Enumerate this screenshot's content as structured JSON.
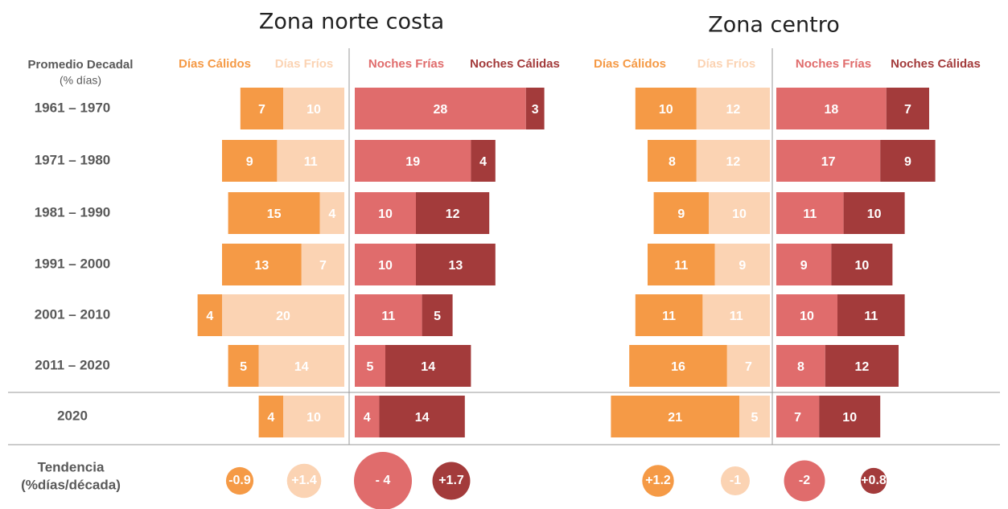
{
  "row_header": [
    "Promedio Decadal",
    "(% días)"
  ],
  "rows": [
    "1961 – 1970",
    "1971 – 1980",
    "1981 – 1990",
    "1991 – 2000",
    "2001 – 2010",
    "2011 – 2020",
    "2020"
  ],
  "trend_header": [
    "Tendencia",
    "(%días/década)"
  ],
  "chart_data": [
    {
      "type": "diverging_bar",
      "title": "Zona norte costa",
      "series": [
        {
          "name": "Días Cálidos",
          "color": "#f59a46",
          "values": [
            7,
            9,
            15,
            13,
            4,
            5,
            4
          ],
          "trend": -0.9
        },
        {
          "name": "Días Fríos",
          "color": "#fbd3b3",
          "values": [
            10,
            11,
            4,
            7,
            20,
            14,
            10
          ],
          "trend": {
            "value": 1.4,
            "label": "+1.4"
          }
        },
        {
          "name": "Noches Frías",
          "color": "#e06c6c",
          "values": [
            28,
            19,
            10,
            10,
            11,
            5,
            4
          ],
          "trend": {
            "value": -4,
            "label": "- 4"
          }
        },
        {
          "name": "Noches Cálidas",
          "color": "#a33b3b",
          "values": [
            3,
            4,
            12,
            13,
            5,
            14,
            14
          ],
          "trend": {
            "value": 1.7,
            "label": "+1.7"
          }
        }
      ]
    },
    {
      "type": "diverging_bar",
      "title": "Zona centro",
      "series": [
        {
          "name": "Días Cálidos",
          "color": "#f59a46",
          "values": [
            10,
            8,
            9,
            11,
            11,
            16,
            21
          ],
          "trend": {
            "value": 1.2,
            "label": "+1.2"
          }
        },
        {
          "name": "Días Fríos",
          "color": "#fbd3b3",
          "values": [
            12,
            12,
            10,
            9,
            11,
            7,
            5
          ],
          "trend": -1
        },
        {
          "name": "Noches Frías",
          "color": "#e06c6c",
          "values": [
            18,
            17,
            11,
            9,
            10,
            8,
            7
          ],
          "trend": -2
        },
        {
          "name": "Noches Cálidas",
          "color": "#a33b3b",
          "values": [
            7,
            9,
            10,
            10,
            11,
            12,
            10
          ],
          "trend": {
            "value": 0.8,
            "label": "+0.8"
          }
        }
      ]
    }
  ]
}
